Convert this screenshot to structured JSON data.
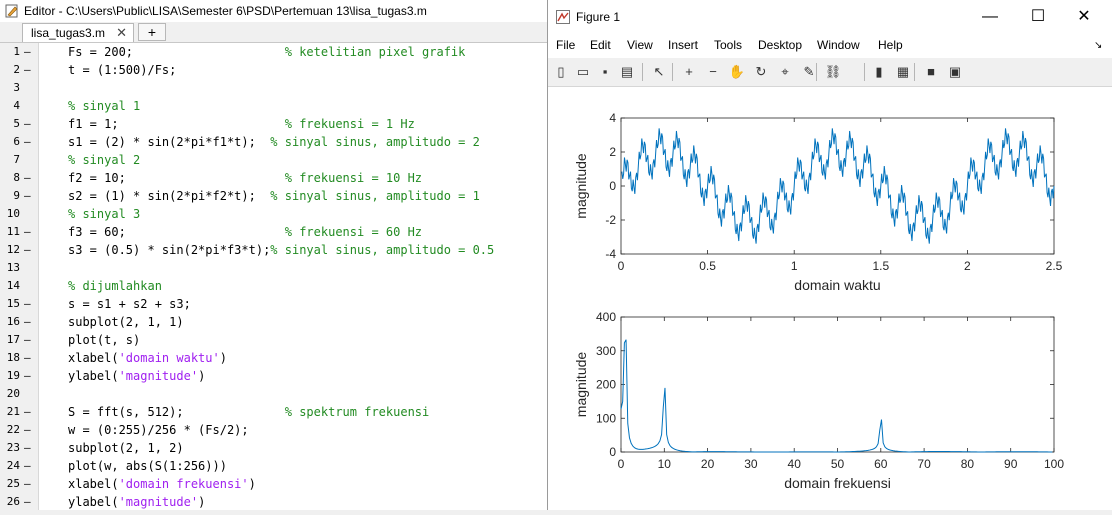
{
  "editor": {
    "title": "Editor - C:\\Users\\Public\\LISA\\Semester 6\\PSD\\Pertemuan 13\\lisa_tugas3.m",
    "tab_label": "lisa_tugas3.m",
    "close_glyph": "✕",
    "add_tab_glyph": "+",
    "lines": [
      {
        "n": "1",
        "dash": "—",
        "code": "Fs = 200;",
        "comment": "% ketelitian pixel grafik",
        "pad": "                     "
      },
      {
        "n": "2",
        "dash": "—",
        "code": "t = (1:500)/Fs;",
        "comment": "",
        "pad": ""
      },
      {
        "n": "3",
        "dash": "",
        "code": "",
        "comment": "",
        "pad": ""
      },
      {
        "n": "4",
        "dash": "",
        "code": "",
        "comment": "% sinyal 1",
        "pad": ""
      },
      {
        "n": "5",
        "dash": "—",
        "code": "f1 = 1;",
        "comment": "% frekuensi = 1 Hz",
        "pad": "                       "
      },
      {
        "n": "6",
        "dash": "—",
        "code": "s1 = (2) * sin(2*pi*f1*t);",
        "comment": "% sinyal sinus, amplitudo = 2",
        "pad": "  "
      },
      {
        "n": "7",
        "dash": "",
        "code": "",
        "comment": "% sinyal 2",
        "pad": ""
      },
      {
        "n": "8",
        "dash": "—",
        "code": "f2 = 10;",
        "comment": "% frekuensi = 10 Hz",
        "pad": "                      "
      },
      {
        "n": "9",
        "dash": "—",
        "code": "s2 = (1) * sin(2*pi*f2*t);",
        "comment": "% sinyal sinus, amplitudo = 1",
        "pad": "  "
      },
      {
        "n": "10",
        "dash": "",
        "code": "",
        "comment": "% sinyal 3",
        "pad": ""
      },
      {
        "n": "11",
        "dash": "—",
        "code": "f3 = 60;",
        "comment": "% frekuensi = 60 Hz",
        "pad": "                      "
      },
      {
        "n": "12",
        "dash": "—",
        "code": "s3 = (0.5) * sin(2*pi*f3*t);",
        "comment": "% sinyal sinus, amplitudo = 0.5",
        "pad": ""
      },
      {
        "n": "13",
        "dash": "",
        "code": "",
        "comment": "",
        "pad": ""
      },
      {
        "n": "14",
        "dash": "",
        "code": "",
        "comment": "% dijumlahkan",
        "pad": ""
      },
      {
        "n": "15",
        "dash": "—",
        "code": "s = s1 + s2 + s3;",
        "comment": "",
        "pad": ""
      },
      {
        "n": "16",
        "dash": "—",
        "code": "subplot(2, 1, 1)",
        "comment": "",
        "pad": ""
      },
      {
        "n": "17",
        "dash": "—",
        "code": "plot(t, s)",
        "comment": "",
        "pad": ""
      },
      {
        "n": "18",
        "dash": "—",
        "code": "xlabel(",
        "str": "'domain waktu'",
        "tail": ")",
        "comment": "",
        "pad": ""
      },
      {
        "n": "19",
        "dash": "—",
        "code": "ylabel(",
        "str": "'magnitude'",
        "tail": ")",
        "comment": "",
        "pad": ""
      },
      {
        "n": "20",
        "dash": "",
        "code": "",
        "comment": "",
        "pad": ""
      },
      {
        "n": "21",
        "dash": "—",
        "code": "S = fft(s, 512);",
        "comment": "% spektrum frekuensi",
        "pad": "              "
      },
      {
        "n": "22",
        "dash": "—",
        "code": "w = (0:255)/256 * (Fs/2);",
        "comment": "",
        "pad": ""
      },
      {
        "n": "23",
        "dash": "—",
        "code": "subplot(2, 1, 2)",
        "comment": "",
        "pad": ""
      },
      {
        "n": "24",
        "dash": "—",
        "code": "plot(w, abs(S(1:256)))",
        "comment": "",
        "pad": ""
      },
      {
        "n": "25",
        "dash": "—",
        "code": "xlabel(",
        "str": "'domain frekuensi'",
        "tail": ")",
        "comment": "",
        "pad": ""
      },
      {
        "n": "26",
        "dash": "—",
        "code": "ylabel(",
        "str": "'magnitude'",
        "tail": ")",
        "comment": "",
        "pad": ""
      }
    ]
  },
  "figure": {
    "title": "Figure 1",
    "window_buttons": {
      "minimize": "—",
      "maximize": "☐",
      "close": "✕"
    },
    "menu": [
      "File",
      "Edit",
      "View",
      "Insert",
      "Tools",
      "Desktop",
      "Window",
      "Help"
    ],
    "toolbar_icons": [
      "new-figure-icon",
      "open-file-icon",
      "save-icon",
      "print-icon",
      "pointer-icon",
      "zoom-in-icon",
      "zoom-out-icon",
      "pan-icon",
      "rotate-icon",
      "data-cursor-icon",
      "brush-icon",
      "link-icon",
      "colorbar-icon",
      "legend-icon",
      "hide-tools-icon",
      "dock-icon"
    ],
    "toolbar_glyphs": [
      "▯",
      "▭",
      "▪",
      "▤",
      "↖",
      "+",
      "−",
      "✋",
      "↻",
      "⌖",
      "✎",
      "⛓",
      "▮",
      "▦",
      "■",
      "▣"
    ],
    "line_color": "#0072bd"
  },
  "chart_data": [
    {
      "type": "line",
      "formula": {
        "Fs": 200,
        "n": 500,
        "components": [
          {
            "amp": 2,
            "freq": 1
          },
          {
            "amp": 1,
            "freq": 10
          },
          {
            "amp": 0.5,
            "freq": 60
          }
        ]
      },
      "xlabel": "domain waktu",
      "ylabel": "magnitude",
      "xlim": [
        0,
        2.5
      ],
      "ylim": [
        -4,
        4
      ],
      "xticks": [
        "0",
        "0.5",
        "1",
        "1.5",
        "2",
        "2.5"
      ],
      "xtick_values": [
        0,
        0.5,
        1,
        1.5,
        2,
        2.5
      ],
      "yticks": [
        "-4",
        "-2",
        "0",
        "2",
        "4"
      ],
      "ytick_values": [
        -4,
        -2,
        0,
        2,
        4
      ]
    },
    {
      "type": "line",
      "formula": {
        "Fs": 200,
        "nfft": 512,
        "bins": 256
      },
      "xlabel": "domain frekuensi",
      "ylabel": "magnitude",
      "xlim": [
        0,
        100
      ],
      "ylim": [
        0,
        400
      ],
      "xticks": [
        "0",
        "10",
        "20",
        "30",
        "40",
        "50",
        "60",
        "70",
        "80",
        "90",
        "100"
      ],
      "xtick_values": [
        0,
        10,
        20,
        30,
        40,
        50,
        60,
        70,
        80,
        90,
        100
      ],
      "yticks": [
        "0",
        "100",
        "200",
        "300",
        "400"
      ],
      "ytick_values": [
        0,
        100,
        200,
        300,
        400
      ]
    }
  ]
}
